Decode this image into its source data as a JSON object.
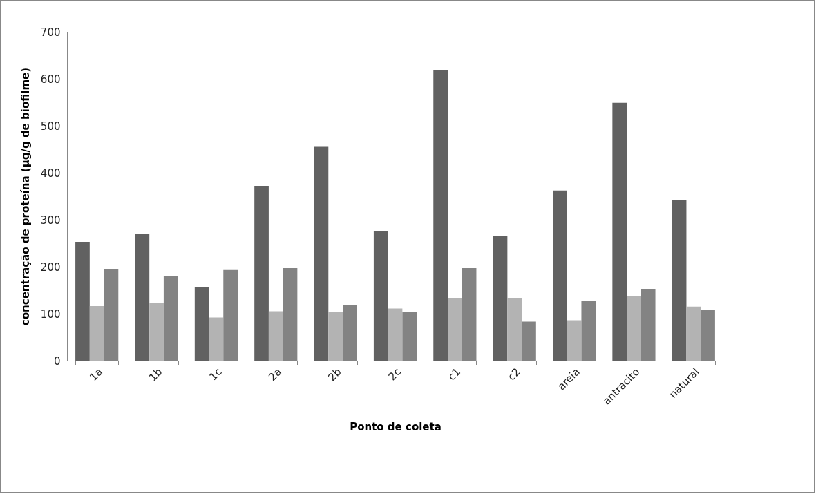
{
  "chart_data": {
    "type": "bar",
    "xlabel": "Ponto de coleta",
    "ylabel": "concentração de proteína (µg/g de biofilme)",
    "categories": [
      "1a",
      "1b",
      "1c",
      "2a",
      "2b",
      "2c",
      "c1",
      "c2",
      "areia",
      "antracito",
      "natural"
    ],
    "series": [
      {
        "color": "#616161",
        "values": [
          253,
          269,
          156,
          372,
          455,
          275,
          619,
          265,
          362,
          549,
          342
        ]
      },
      {
        "color": "#b3b3b3",
        "values": [
          116,
          122,
          92,
          105,
          104,
          111,
          133,
          133,
          86,
          137,
          115
        ]
      },
      {
        "color": "#838383",
        "values": [
          195,
          180,
          193,
          197,
          118,
          103,
          197,
          83,
          127,
          152,
          109
        ]
      }
    ],
    "ylim": [
      0,
      700
    ],
    "yticks": [
      0,
      100,
      200,
      300,
      400,
      500,
      600,
      700
    ],
    "grid": false,
    "legend": false
  }
}
